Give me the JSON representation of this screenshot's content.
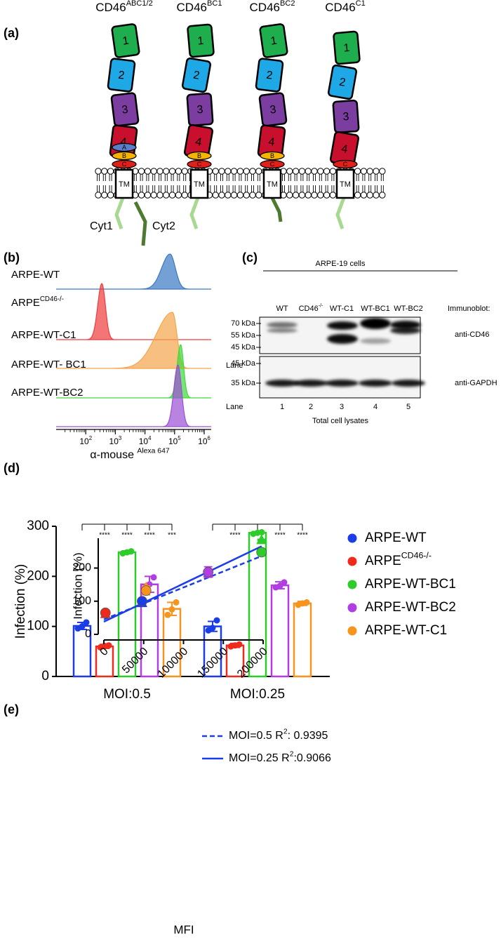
{
  "figure": {
    "panel_labels": [
      "(a)",
      "(b)",
      "(c)",
      "(d)",
      "(e)"
    ],
    "a": {
      "constructs": [
        {
          "base": "CD46",
          "sup": "ABC1/2",
          "stp": [
            "A",
            "B",
            "C"
          ]
        },
        {
          "base": "CD46",
          "sup": "BC1",
          "stp": [
            "B",
            "C"
          ]
        },
        {
          "base": "CD46",
          "sup": "BC2",
          "stp": [
            "B",
            "C"
          ]
        },
        {
          "base": "CD46",
          "sup": "C1",
          "stp": [
            "C"
          ]
        }
      ],
      "domains": [
        "1",
        "2",
        "3",
        "4"
      ],
      "tm": "TM",
      "tails": [
        "Cyt1",
        "Cyt2"
      ]
    },
    "b": {
      "rows": [
        {
          "base": "ARPE-WT",
          "peak": 70000,
          "color": "#3b78c4"
        },
        {
          "base": "ARPE",
          "sup": "CD46-/-",
          "peak": 350,
          "color": "#ef3b3b"
        },
        {
          "base": "ARPE-WT-C1",
          "peak": 85000,
          "color": "#f5a54a"
        },
        {
          "base": "ARPE-WT- BC1",
          "peak": 160000,
          "color": "#3fd93a"
        },
        {
          "base": "ARPE-WT-BC2",
          "peak": 130000,
          "color": "#9b4fd6"
        }
      ],
      "xlim": [
        10,
        1000000
      ],
      "xticks": [
        {
          "value": 100,
          "base": "10",
          "sup": "2"
        },
        {
          "value": 1000,
          "base": "10",
          "sup": "3"
        },
        {
          "value": 10000,
          "base": "10",
          "sup": "4"
        },
        {
          "value": 100000,
          "base": "10",
          "sup": "5"
        },
        {
          "value": 1000000,
          "base": "10",
          "sup": "6"
        }
      ],
      "xlabel": {
        "base": "α-mouse ",
        "sup": "Alexa 647"
      }
    },
    "c": {
      "title": "ARPE-19 cells",
      "lanes": [
        {
          "base": "WT"
        },
        {
          "base": "CD46",
          "sup": "-/-"
        },
        {
          "base": "WT-C1"
        },
        {
          "base": "WT-BC1"
        },
        {
          "base": "WT-BC2"
        }
      ],
      "immunoblot": "Immunoblot:",
      "blots": [
        {
          "antibody": "anti-CD46",
          "markers": [
            "70 kDa",
            "55 kDa",
            "45 kDa"
          ]
        },
        {
          "antibody": "anti-GAPDH",
          "markers": [
            "45 kDa",
            "35 kDa"
          ]
        }
      ],
      "lane_label": "Lane",
      "lane_numbers": [
        "1",
        "2",
        "3",
        "4",
        "5"
      ],
      "footer": "Total cell lysates"
    }
  },
  "chart_data": [
    {
      "type": "bar",
      "categories": [
        "MOI:0.5",
        "MOI:0.25"
      ],
      "ylabel": "Infection (%)",
      "ylim": [
        0,
        300
      ],
      "yticks": [
        0,
        100,
        200,
        300
      ],
      "series": [
        {
          "name": "ARPE-WT",
          "color": "#1a3de8",
          "values": [
            101,
            100
          ],
          "errors": [
            7,
            10
          ],
          "points": [
            [
              96,
              108,
              100
            ],
            [
              92,
              112,
              97
            ]
          ]
        },
        {
          "name": "ARPE",
          "name_sup": "CD46-/-",
          "color": "#ee2a1c",
          "values": [
            60,
            62
          ],
          "errors": [
            4,
            4
          ],
          "points": [
            [
              58,
              62,
              61
            ],
            [
              60,
              64,
              62
            ]
          ]
        },
        {
          "name": "ARPE-WT-BC1",
          "color": "#2ecc2a",
          "values": [
            248,
            287
          ],
          "errors": [
            3,
            2
          ],
          "points": [
            [
              246,
              250,
              248
            ],
            [
              285,
              288,
              287
            ]
          ]
        },
        {
          "name": "ARPE-WT-BC2",
          "color": "#b13ee0",
          "values": [
            184,
            182
          ],
          "errors": [
            16,
            7
          ],
          "points": [
            [
              170,
              198,
              184
            ],
            [
              178,
              188,
              181
            ]
          ]
        },
        {
          "name": "ARPE-WT-C1",
          "color": "#f7941d",
          "values": [
            135,
            146
          ],
          "errors": [
            13,
            4
          ],
          "points": [
            [
              123,
              148,
              134
            ],
            [
              143,
              148,
              146
            ]
          ]
        }
      ],
      "significance": [
        [
          "****",
          "****",
          "****",
          "***"
        ],
        [
          "****",
          "****",
          "****",
          "****"
        ]
      ]
    },
    {
      "type": "scatter",
      "xlabel": "MFI",
      "ylabel": "Infection (%)",
      "xlim": [
        0,
        200000
      ],
      "xticks": [
        0,
        50000,
        100000,
        150000,
        200000
      ],
      "ylim": [
        0,
        290
      ],
      "yticks": [
        0,
        100,
        200
      ],
      "groups": [
        {
          "color": "#1a3de8",
          "x": 48000,
          "y": [
            100,
            95
          ],
          "errors": [
            7,
            10
          ]
        },
        {
          "color": "#ee2a1c",
          "x": 2000,
          "y": [
            65,
            62
          ],
          "errors": [
            4,
            4
          ]
        },
        {
          "color": "#2ecc2a",
          "x": 198000,
          "y": [
            248,
            285
          ],
          "errors": [
            3,
            2
          ]
        },
        {
          "color": "#b13ee0",
          "x": 131000,
          "y": [
            188,
            185
          ],
          "errors": [
            16,
            7
          ]
        },
        {
          "color": "#f7941d",
          "x": 53000,
          "y": [
            132,
            142
          ],
          "errors": [
            13,
            4
          ]
        }
      ],
      "fits": [
        {
          "base": "MOI=0.5 R",
          "sup": "2",
          "rest": ": 0.9395",
          "dash": true,
          "color": "#1a3de8",
          "intercept": 45,
          "slope": 0.000965
        },
        {
          "base": "MOI=0.25 R",
          "sup": "2",
          "rest": ":0.9066",
          "dash": false,
          "color": "#1a3de8",
          "intercept": 38,
          "slope": 0.00115
        }
      ]
    }
  ]
}
